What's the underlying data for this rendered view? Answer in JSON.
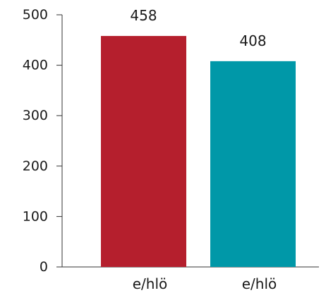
{
  "chart_data": {
    "type": "bar",
    "categories": [
      "e/hlö",
      "e/hlö"
    ],
    "values": [
      458,
      408
    ],
    "colors": [
      "#b51f2d",
      "#0098a8"
    ],
    "data_labels": [
      "458",
      "408"
    ],
    "yticks": [
      0,
      100,
      200,
      300,
      400,
      500
    ],
    "ytick_labels": [
      "0",
      "100",
      "200",
      "300",
      "400",
      "500"
    ],
    "ylim": [
      0,
      500
    ],
    "grid": false,
    "legend": "none"
  }
}
